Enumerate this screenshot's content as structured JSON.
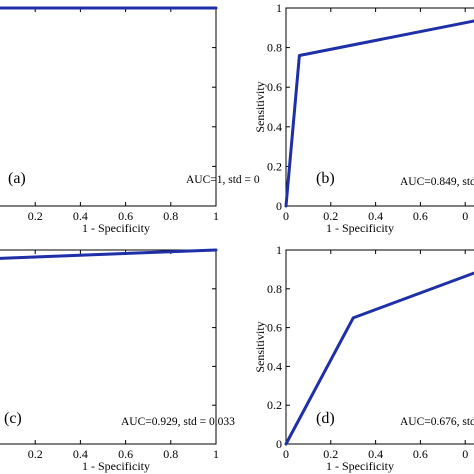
{
  "chart_data": [
    {
      "type": "line",
      "panel_label": "(a)",
      "annotation": "AUC=1, std = 0",
      "xlabel": "1 - Specificity",
      "ylabel": "",
      "x_ticks": [
        "0.2",
        "0.4",
        "0.6",
        "0.8",
        "1"
      ],
      "y_ticks": [],
      "xlim": [
        0,
        1
      ],
      "ylim": [
        0,
        1
      ],
      "grid": false,
      "series": [
        {
          "x": [
            0,
            0,
            1
          ],
          "y": [
            0,
            1,
            1
          ]
        }
      ]
    },
    {
      "type": "line",
      "panel_label": "(b)",
      "annotation": "AUC=0.849, std",
      "xlabel": "1 - Specificity",
      "ylabel": "Sensitivity",
      "x_ticks": [
        "0",
        "0.2",
        "0.4",
        "0.6",
        "0"
      ],
      "y_ticks": [
        "0",
        "0.2",
        "0.4",
        "0.6",
        "0.8",
        "1"
      ],
      "xlim": [
        0,
        1
      ],
      "ylim": [
        0,
        1
      ],
      "grid": false,
      "series": [
        {
          "x": [
            0,
            0.06,
            1
          ],
          "y": [
            0,
            0.76,
            0.97
          ]
        }
      ]
    },
    {
      "type": "line",
      "panel_label": "(c)",
      "annotation": "AUC=0.929, std = 0.033",
      "xlabel": "1 - Specificity",
      "ylabel": "",
      "x_ticks": [
        "0.2",
        "0.4",
        "0.6",
        "0.8",
        "1"
      ],
      "y_ticks": [],
      "xlim": [
        0,
        1
      ],
      "ylim": [
        0,
        1
      ],
      "grid": false,
      "series": [
        {
          "x": [
            0,
            1
          ],
          "y": [
            0.955,
            1
          ]
        }
      ]
    },
    {
      "type": "line",
      "panel_label": "(d)",
      "annotation": "AUC=0.676, std",
      "xlabel": "1 - Specificity",
      "ylabel": "Sensitivity",
      "x_ticks": [
        "0",
        "0.2",
        "0.4",
        "0.6",
        "0"
      ],
      "y_ticks": [
        "0",
        "0.2",
        "0.4",
        "0.6",
        "0.8",
        "1"
      ],
      "xlim": [
        0,
        1
      ],
      "ylim": [
        0,
        1
      ],
      "grid": false,
      "series": [
        {
          "x": [
            0,
            0.3,
            1
          ],
          "y": [
            0,
            0.65,
            0.95
          ]
        }
      ]
    }
  ],
  "line_color": "#1f2fa8"
}
